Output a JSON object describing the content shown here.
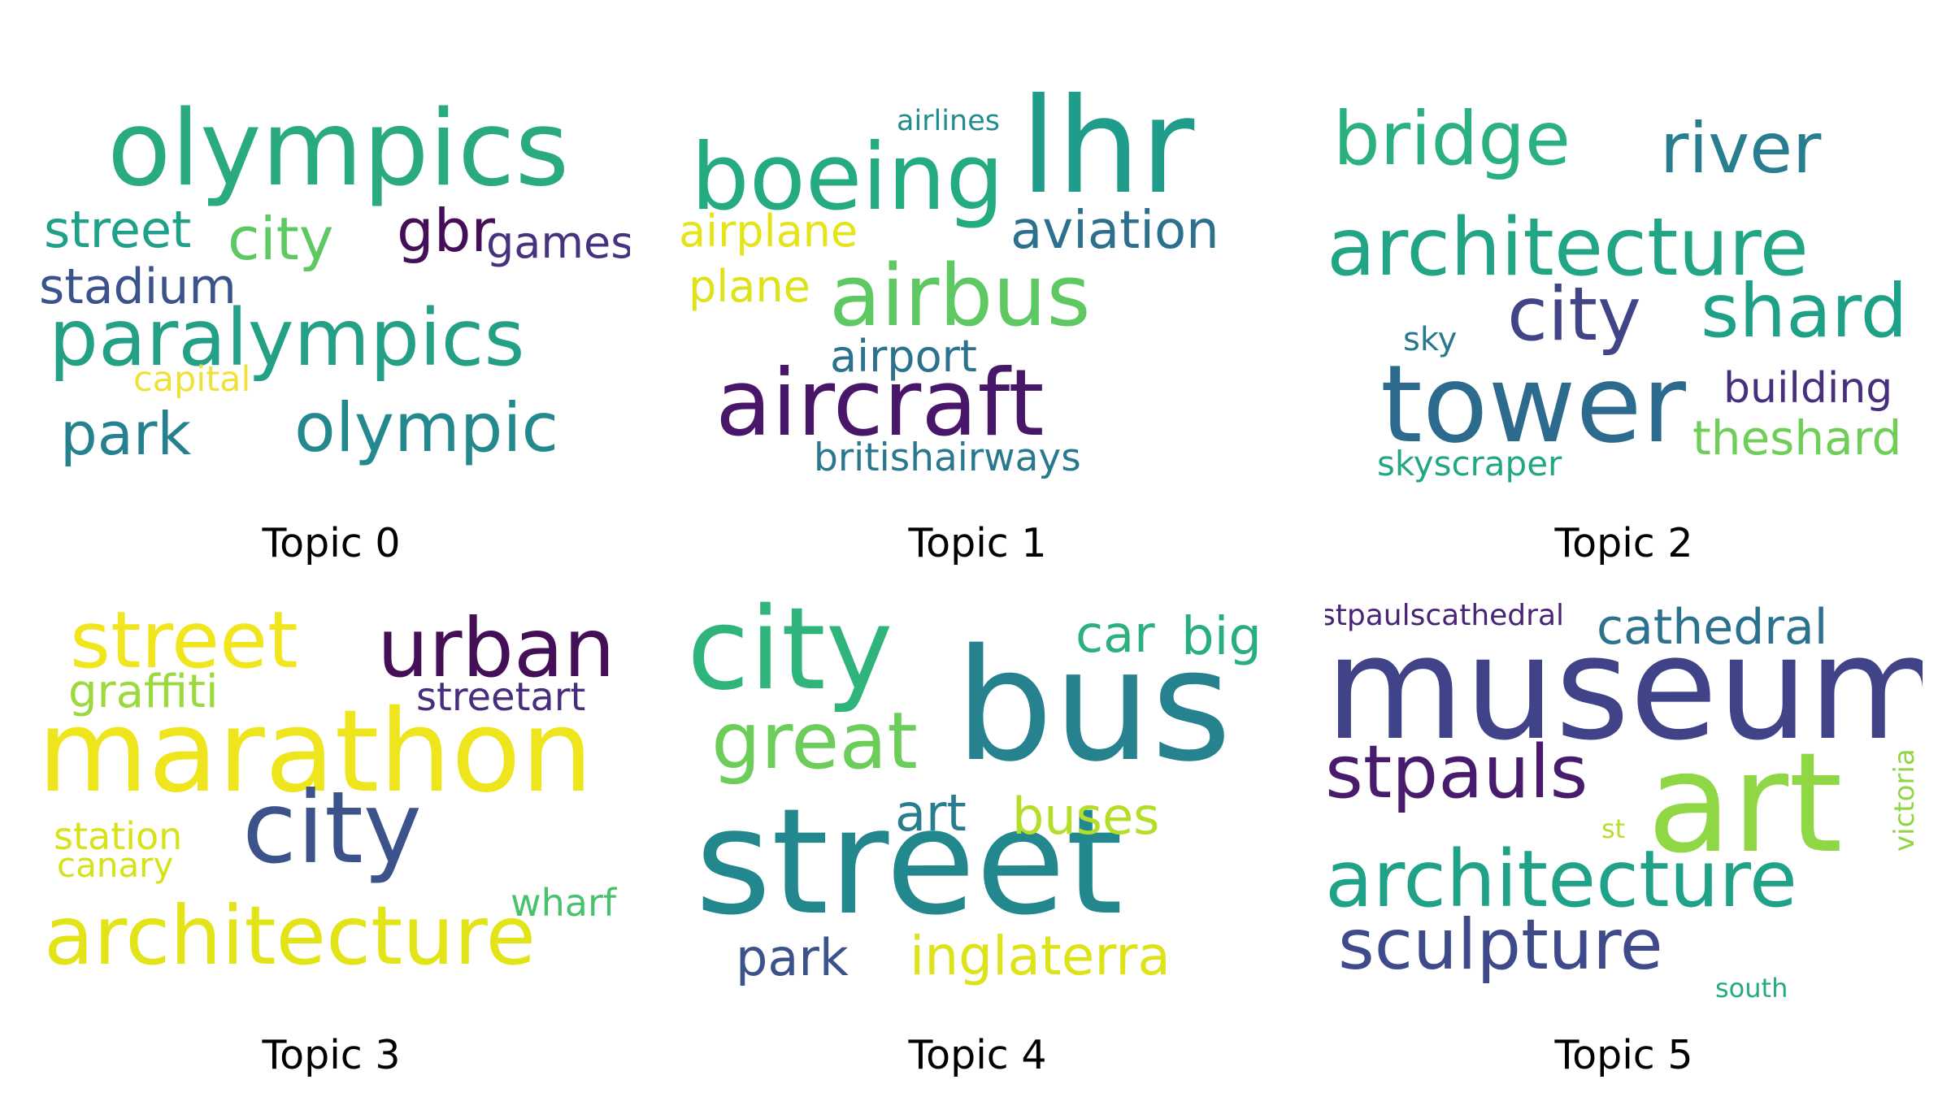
{
  "topics": [
    {
      "caption": "Topic 0",
      "words": [
        {
          "text": "olympics",
          "size": 128,
          "color": "#2aab7f"
        },
        {
          "text": "paralympics",
          "size": 96,
          "color": "#24a087"
        },
        {
          "text": "olympic",
          "size": 83,
          "color": "#23898e"
        },
        {
          "text": "park",
          "size": 72,
          "color": "#26818e"
        },
        {
          "text": "city",
          "size": 72,
          "color": "#5ec962"
        },
        {
          "text": "gbr",
          "size": 72,
          "color": "#440f56"
        },
        {
          "text": "street",
          "size": 62,
          "color": "#1fa088"
        },
        {
          "text": "stadium",
          "size": 60,
          "color": "#3b528b"
        },
        {
          "text": "games",
          "size": 54,
          "color": "#46327e"
        },
        {
          "text": "capital",
          "size": 43,
          "color": "#f0e13a"
        }
      ]
    },
    {
      "caption": "Topic 1",
      "words": [
        {
          "text": "lhr",
          "size": 162,
          "color": "#1f9d8a"
        },
        {
          "text": "boeing",
          "size": 113,
          "color": "#25ab82"
        },
        {
          "text": "aircraft",
          "size": 113,
          "color": "#481769"
        },
        {
          "text": "airbus",
          "size": 104,
          "color": "#5ec962"
        },
        {
          "text": "aviation",
          "size": 64,
          "color": "#2d708e"
        },
        {
          "text": "airplane",
          "size": 54,
          "color": "#e5e419"
        },
        {
          "text": "plane",
          "size": 54,
          "color": "#dde318"
        },
        {
          "text": "airport",
          "size": 54,
          "color": "#2c728e"
        },
        {
          "text": "britishairways",
          "size": 47,
          "color": "#2a788e"
        },
        {
          "text": "airlines",
          "size": 35,
          "color": "#228c8d"
        }
      ]
    },
    {
      "caption": "Topic 2",
      "words": [
        {
          "text": "tower",
          "size": 132,
          "color": "#2c6b8e"
        },
        {
          "text": "architecture",
          "size": 98,
          "color": "#21a585"
        },
        {
          "text": "bridge",
          "size": 91,
          "color": "#2bb07f"
        },
        {
          "text": "city",
          "size": 91,
          "color": "#414487"
        },
        {
          "text": "shard",
          "size": 91,
          "color": "#1fa187"
        },
        {
          "text": "river",
          "size": 86,
          "color": "#287d8e"
        },
        {
          "text": "building",
          "size": 52,
          "color": "#46307e"
        },
        {
          "text": "theshard",
          "size": 58,
          "color": "#6ece58"
        },
        {
          "text": "skyscraper",
          "size": 42,
          "color": "#22a785"
        },
        {
          "text": "sky",
          "size": 40,
          "color": "#2a788e"
        }
      ]
    },
    {
      "caption": "Topic 3",
      "words": [
        {
          "text": "marathon",
          "size": 140,
          "color": "#efe51c"
        },
        {
          "text": "city",
          "size": 122,
          "color": "#3b528b"
        },
        {
          "text": "architecture",
          "size": 100,
          "color": "#e3e418"
        },
        {
          "text": "urban",
          "size": 100,
          "color": "#440f56"
        },
        {
          "text": "street",
          "size": 96,
          "color": "#f1e51d"
        },
        {
          "text": "graffiti",
          "size": 56,
          "color": "#9bd93c"
        },
        {
          "text": "streetart",
          "size": 48,
          "color": "#472d7b"
        },
        {
          "text": "station",
          "size": 46,
          "color": "#d8e219"
        },
        {
          "text": "wharf",
          "size": 46,
          "color": "#4ac16d"
        },
        {
          "text": "canary",
          "size": 42,
          "color": "#d5e21a"
        }
      ]
    },
    {
      "caption": "Topic 4",
      "words": [
        {
          "text": "street",
          "size": 180,
          "color": "#23888e"
        },
        {
          "text": "bus",
          "size": 190,
          "color": "#25828e"
        },
        {
          "text": "city",
          "size": 140,
          "color": "#2fb47c"
        },
        {
          "text": "great",
          "size": 96,
          "color": "#6ccd5a"
        },
        {
          "text": "big",
          "size": 64,
          "color": "#29af7f"
        },
        {
          "text": "car",
          "size": 62,
          "color": "#2bb07f"
        },
        {
          "text": "buses",
          "size": 62,
          "color": "#b5de2b"
        },
        {
          "text": "art",
          "size": 62,
          "color": "#287d8e"
        },
        {
          "text": "park",
          "size": 62,
          "color": "#3b528b"
        },
        {
          "text": "inglaterra",
          "size": 66,
          "color": "#dde318"
        }
      ]
    },
    {
      "caption": "Topic 5",
      "words": [
        {
          "text": "museum",
          "size": 176,
          "color": "#404387"
        },
        {
          "text": "art",
          "size": 170,
          "color": "#8fd744"
        },
        {
          "text": "architecture",
          "size": 96,
          "color": "#1fa288"
        },
        {
          "text": "stpauls",
          "size": 90,
          "color": "#481b6d"
        },
        {
          "text": "sculpture",
          "size": 86,
          "color": "#3e4a89"
        },
        {
          "text": "cathedral",
          "size": 60,
          "color": "#2c728e"
        },
        {
          "text": "stpaulscathedral",
          "size": 36,
          "color": "#482475"
        },
        {
          "text": "victoria",
          "size": 34,
          "color": "#8ed645"
        },
        {
          "text": "st",
          "size": 32,
          "color": "#b8de29"
        },
        {
          "text": "south",
          "size": 32,
          "color": "#25ab82"
        }
      ]
    }
  ]
}
